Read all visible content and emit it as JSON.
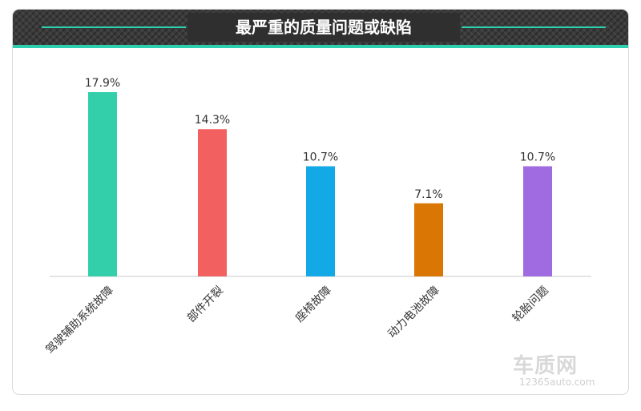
{
  "header": {
    "title": "最严重的质量问题或缺陷"
  },
  "colors": {
    "accent": "#2ecfae",
    "header_bg": "#3a3a3a",
    "bars": [
      "#33cfab",
      "#f2605f",
      "#12a9e6",
      "#d97604",
      "#a06ae0"
    ]
  },
  "chart_data": {
    "type": "bar",
    "title": "最严重的质量问题或缺陷",
    "categories": [
      "驾驶辅助系统故障",
      "部件开裂",
      "座椅故障",
      "动力电池故障",
      "轮胎问题"
    ],
    "values": [
      17.9,
      14.3,
      10.7,
      7.1,
      10.7
    ],
    "value_labels": [
      "17.9%",
      "14.3%",
      "10.7%",
      "7.1%",
      "10.7%"
    ],
    "ylim": [
      0,
      20
    ],
    "grid": false,
    "legend": "none",
    "xlabel": "",
    "ylabel": ""
  },
  "watermark": {
    "brand": "车质网",
    "site": "12365auto.com"
  }
}
